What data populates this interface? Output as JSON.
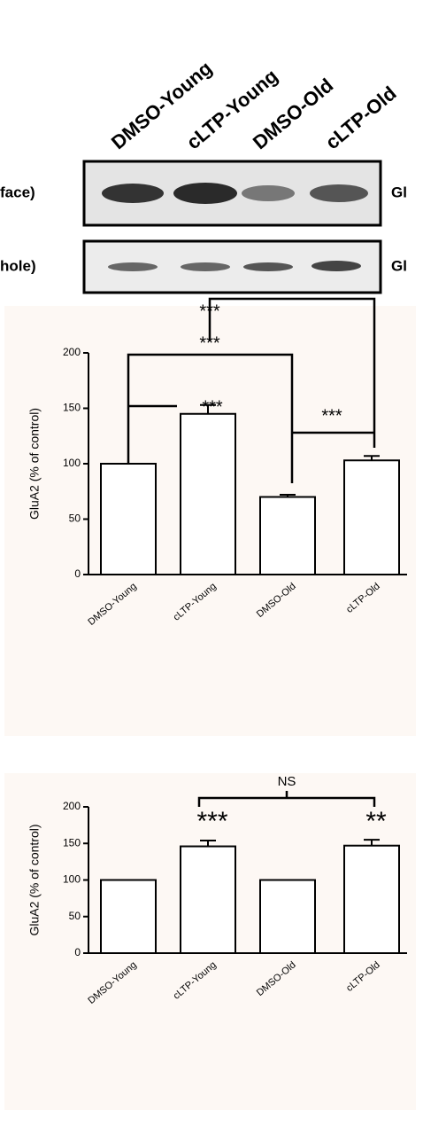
{
  "blot": {
    "lanes": [
      "DMSO-Young",
      "cLTP-Young",
      "DMSO-Old",
      "cLTP-Old"
    ],
    "rows": [
      {
        "left": "face)",
        "right": "Gl"
      },
      {
        "left": "hole)",
        "right": "Gl"
      }
    ]
  },
  "chart_data": [
    {
      "type": "bar",
      "y_label": "GluA2 (% of control)",
      "categories": [
        "DMSO-Young",
        "cLTP-Young",
        "DMSO-Old",
        "cLTP-Old"
      ],
      "values": [
        100,
        145,
        70,
        103
      ],
      "errors": [
        0,
        8,
        2,
        4
      ],
      "color": "#ffffff",
      "ylim": [
        0,
        200
      ],
      "yticks": [
        0,
        50,
        100,
        150,
        200
      ],
      "annotations": [
        "***",
        "***",
        "***",
        "***"
      ]
    },
    {
      "type": "bar",
      "y_label": "GluA2 (% of control)",
      "categories": [
        "DMSO-Young",
        "cLTP-Young",
        "DMSO-Old",
        "cLTP-Old"
      ],
      "values": [
        100,
        146,
        100,
        147
      ],
      "errors": [
        0,
        8,
        0,
        8
      ],
      "color": "#ffffff",
      "ylim": [
        0,
        200
      ],
      "yticks": [
        0,
        50,
        100,
        150,
        200
      ],
      "annotations": [
        "***",
        "**",
        "NS"
      ]
    }
  ]
}
